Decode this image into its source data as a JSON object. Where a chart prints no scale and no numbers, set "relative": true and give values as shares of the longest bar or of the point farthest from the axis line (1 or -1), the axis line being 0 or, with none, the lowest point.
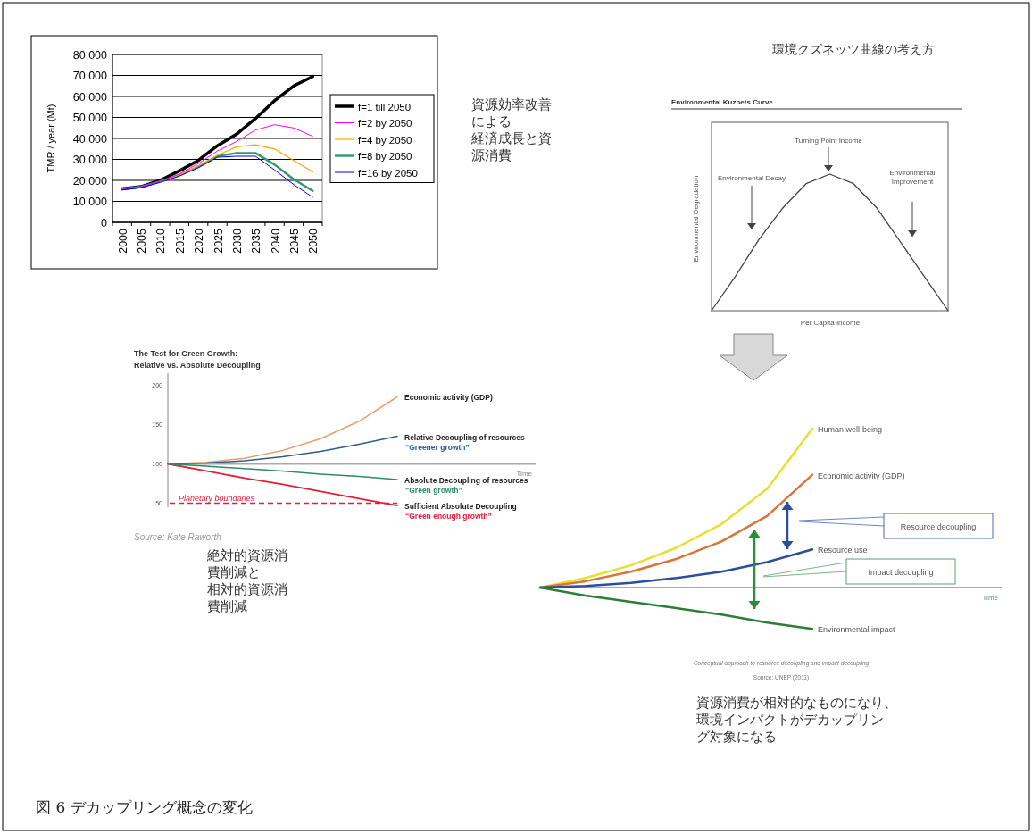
{
  "chart_data": [
    {
      "type": "line",
      "categories": [
        "2000",
        "2005",
        "2010",
        "2015",
        "2020",
        "2025",
        "2030",
        "2035",
        "2040",
        "2045",
        "2050"
      ],
      "ylabel": "TMR / year (Mt)",
      "ylim": [
        0,
        80000
      ],
      "yticks": [
        {
          "value": 0,
          "label": "0"
        },
        {
          "value": 10000,
          "label": "10,000"
        },
        {
          "value": 20000,
          "label": "20,000"
        },
        {
          "value": 30000,
          "label": "30,000"
        },
        {
          "value": 40000,
          "label": "40,000"
        },
        {
          "value": 50000,
          "label": "50,000"
        },
        {
          "value": 60000,
          "label": "60,000"
        },
        {
          "value": 70000,
          "label": "70,000"
        },
        {
          "value": 80000,
          "label": "80,000"
        }
      ],
      "grid": "y",
      "legend": "right",
      "series": [
        {
          "name": "f=1 till 2050",
          "color": "#000000",
          "values": [
            16000,
            17000,
            20000,
            24500,
            29500,
            36500,
            42000,
            49500,
            58000,
            65000,
            69500
          ]
        },
        {
          "name": "f=2 by 2050",
          "color": "#ff00ff",
          "values": [
            16000,
            17000,
            19500,
            23000,
            28000,
            34000,
            38500,
            44000,
            46500,
            45000,
            41000
          ]
        },
        {
          "name": "f=4 by 2050",
          "color": "#ffa500",
          "values": [
            null,
            null,
            19500,
            22500,
            27000,
            32000,
            36000,
            37000,
            35000,
            29500,
            24000
          ]
        },
        {
          "name": "f=8 by 2050",
          "color": "#339966",
          "values": [
            16000,
            17000,
            19500,
            22500,
            26500,
            31500,
            33000,
            33000,
            27500,
            20500,
            15000
          ]
        },
        {
          "name": "f=16 by 2050",
          "color": "#0000ff",
          "values": [
            15500,
            16500,
            19000,
            22000,
            26000,
            31000,
            31500,
            31500,
            25000,
            18000,
            12000
          ]
        }
      ],
      "annotations": [
        "資源効率改善",
        "による",
        "経済成長と資",
        "源消費"
      ]
    },
    {
      "type": "line",
      "relative": true,
      "title": "環境クズネッツ曲線の考え方",
      "subtitle": "Environmental Kuznets Curve",
      "xlabel": "Per Capita Income",
      "ylabel": "Environmental Degradation",
      "categories": [
        null,
        null,
        null,
        null,
        null,
        null,
        null,
        null,
        null,
        null,
        null
      ],
      "series": [
        {
          "color": "#444444",
          "values": [
            0,
            0.25,
            0.52,
            0.75,
            0.93,
            1,
            0.93,
            0.75,
            0.5,
            0.25,
            0
          ]
        }
      ],
      "annotations": [
        "Turning Point Income",
        "Environmental Decay",
        "Environmental\nImprovement"
      ]
    },
    {
      "type": "line",
      "title": "The Test for Green Growth:\nRelative vs. Absolute Decoupling",
      "categories": [
        null,
        null,
        null,
        null,
        null,
        null,
        null
      ],
      "ylim": [
        45,
        215
      ],
      "yticks": [
        50,
        100,
        150,
        200
      ],
      "tick_labels": "y",
      "series": [
        {
          "name": "Economic activity (GDP)",
          "color": "#e8a070",
          "values": [
            100,
            102,
            107,
            117,
            132,
            154,
            185
          ]
        },
        {
          "name": "Relative Decoupling of resources",
          "color": "#2e5d8a",
          "values": [
            100,
            101,
            104,
            109,
            116,
            125,
            135
          ]
        },
        {
          "name": "Absolute Decoupling of resources",
          "color": "#2e8b6a",
          "values": [
            100,
            97,
            94,
            91,
            87,
            84,
            80
          ]
        },
        {
          "name": "Sufficient Absolute Decoupling",
          "color": "#e0203a",
          "values": [
            100,
            91,
            82,
            74,
            65,
            56,
            47
          ]
        }
      ],
      "ref_lines": [
        {
          "axis": "y",
          "value": 100,
          "label": "Time",
          "color": "#aaaaaa"
        },
        {
          "axis": "y",
          "value": 50,
          "label": "Planetary boundaries",
          "color": "#e0203a",
          "line_style": "dashed"
        }
      ],
      "annotations": [
        "“Greener growth”",
        "“Green growth”",
        "“Green enough growth”",
        "Source: Kate Raworth",
        "絶対的資源消",
        "費削減と",
        "相対的資源消",
        "費削減"
      ]
    },
    {
      "type": "line",
      "relative": true,
      "categories": [
        null,
        null,
        null,
        null,
        null,
        null,
        null
      ],
      "series": [
        {
          "name": "Human well-being",
          "color": "#e6e030",
          "values": [
            0,
            0.06,
            0.14,
            0.25,
            0.4,
            0.62,
            1
          ]
        },
        {
          "name": "Economic activity (GDP)",
          "color": "#d9743a",
          "values": [
            0,
            0.04,
            0.1,
            0.18,
            0.29,
            0.45,
            0.71
          ]
        },
        {
          "name": "Resource use",
          "color": "#2b4f9e",
          "values": [
            0,
            0.01,
            0.03,
            0.06,
            0.1,
            0.16,
            0.24
          ]
        },
        {
          "name": "Environmental impact",
          "color": "#2e7d3a",
          "values": [
            0,
            -0.05,
            -0.09,
            -0.13,
            -0.17,
            -0.22,
            -0.26
          ]
        }
      ],
      "ref_lines": [
        {
          "axis": "y",
          "value": 0,
          "label": "Time",
          "color": "#aaaaaa"
        }
      ],
      "annotations": [
        "Resource decoupling",
        "Impact decoupling",
        "Conceptual approach to resource decoupling and impact decoupling",
        "Source: UNEP (2011)",
        "資源消費が相対的なものになり、",
        "環境インパクトがデカップリン",
        "グ対象になる"
      ]
    },
    {
      "type": "other",
      "title": "図 6 デカップリング概念の変化"
    }
  ]
}
